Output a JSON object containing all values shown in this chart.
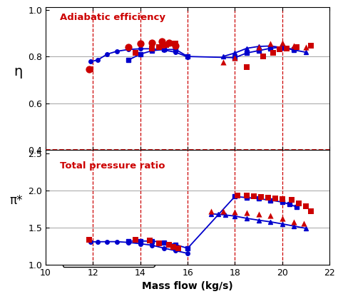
{
  "xlim": [
    10,
    22
  ],
  "eta_ylim": [
    0.4,
    1.01
  ],
  "pi_ylim": [
    1.0,
    2.55
  ],
  "eta_yticks": [
    0.4,
    0.6,
    0.8,
    1.0
  ],
  "pi_yticks": [
    1.0,
    1.5,
    2.0,
    2.5
  ],
  "xticks": [
    10,
    12,
    14,
    16,
    18,
    20,
    22
  ],
  "vlines": [
    12,
    14,
    16,
    18,
    20
  ],
  "xlabel": "Mass flow (kg/s)",
  "eta_label": "η",
  "pi_label": "π*",
  "eta_title": "Adiabatic efficiency",
  "pi_title": "Total pressure ratio",
  "red_color": "#cc0000",
  "blue_color": "#0000cc",
  "dashed_color": "#cc0000",
  "test_100_eta_x": [
    11.9,
    13.8,
    14.5,
    14.8,
    14.95,
    15.1,
    15.3,
    15.5,
    18.5,
    19.2,
    19.6,
    19.9,
    20.2,
    20.6,
    21.2
  ],
  "test_100_eta_y": [
    0.745,
    0.815,
    0.835,
    0.84,
    0.845,
    0.85,
    0.855,
    0.855,
    0.755,
    0.8,
    0.815,
    0.83,
    0.835,
    0.84,
    0.845
  ],
  "test_90_eta_x": [
    17.5,
    18.0,
    19.0,
    19.5,
    20.0,
    20.5,
    21.0
  ],
  "test_90_eta_y": [
    0.775,
    0.795,
    0.84,
    0.855,
    0.858,
    0.845,
    0.84
  ],
  "test_70_eta_x": [
    11.85,
    13.5,
    14.0,
    14.5,
    14.9,
    15.2,
    15.5
  ],
  "test_70_eta_y": [
    0.745,
    0.84,
    0.855,
    0.86,
    0.865,
    0.86,
    0.845
  ],
  "cfd_100_eta_x": [
    13.5,
    14.0,
    14.5,
    15.0,
    15.5,
    16.0,
    18.0,
    18.5,
    19.0,
    19.5,
    20.0,
    20.5
  ],
  "cfd_100_eta_y": [
    0.785,
    0.81,
    0.825,
    0.83,
    0.83,
    0.8,
    0.795,
    0.815,
    0.825,
    0.835,
    0.84,
    0.83
  ],
  "cfd_90_eta_x": [
    17.5,
    18.0,
    18.5,
    19.0,
    19.5,
    20.0,
    20.5,
    21.0
  ],
  "cfd_90_eta_y": [
    0.8,
    0.815,
    0.835,
    0.843,
    0.845,
    0.838,
    0.828,
    0.818
  ],
  "cfd_70_eta_x": [
    11.9,
    12.2,
    12.6,
    13.0,
    13.5,
    14.0,
    14.5,
    15.0,
    15.5,
    16.0
  ],
  "cfd_70_eta_y": [
    0.778,
    0.785,
    0.81,
    0.822,
    0.83,
    0.833,
    0.833,
    0.828,
    0.818,
    0.798
  ],
  "test_100_pi_x": [
    11.85,
    13.8,
    14.4,
    14.8,
    15.2,
    15.4,
    15.6,
    18.1,
    18.5,
    18.8,
    19.1,
    19.4,
    19.7,
    20.0,
    20.4,
    20.7,
    21.0,
    21.2
  ],
  "test_100_pi_y": [
    1.335,
    1.335,
    1.325,
    1.29,
    1.265,
    1.24,
    1.22,
    1.935,
    1.93,
    1.925,
    1.915,
    1.905,
    1.89,
    1.885,
    1.875,
    1.83,
    1.79,
    1.72
  ],
  "test_90_pi_x": [
    17.0,
    17.5,
    18.0,
    18.5,
    19.0,
    19.5,
    20.0,
    20.5,
    20.9
  ],
  "test_90_pi_y": [
    1.725,
    1.725,
    1.71,
    1.7,
    1.685,
    1.665,
    1.62,
    1.58,
    1.56
  ],
  "test_70_pi_x": [],
  "test_70_pi_y": [],
  "cfd_100_pi_x": [
    13.5,
    14.0,
    14.5,
    15.0,
    15.5,
    16.0,
    18.0,
    18.5,
    19.0,
    19.5,
    20.0,
    20.3,
    20.6
  ],
  "cfd_100_pi_y": [
    1.318,
    1.318,
    1.318,
    1.3,
    1.27,
    1.22,
    1.92,
    1.905,
    1.89,
    1.87,
    1.845,
    1.815,
    1.78
  ],
  "cfd_90_pi_x": [
    17.0,
    17.3,
    17.6,
    18.0,
    18.5,
    19.0,
    19.5,
    20.0,
    20.5,
    21.0
  ],
  "cfd_90_pi_y": [
    1.685,
    1.68,
    1.67,
    1.655,
    1.625,
    1.6,
    1.578,
    1.55,
    1.52,
    1.49
  ],
  "cfd_70_pi_x": [
    11.9,
    12.2,
    12.6,
    13.0,
    13.5,
    14.0,
    14.5,
    15.0,
    15.5,
    16.0
  ],
  "cfd_70_pi_y": [
    1.308,
    1.308,
    1.31,
    1.31,
    1.3,
    1.282,
    1.262,
    1.222,
    1.188,
    1.152
  ]
}
